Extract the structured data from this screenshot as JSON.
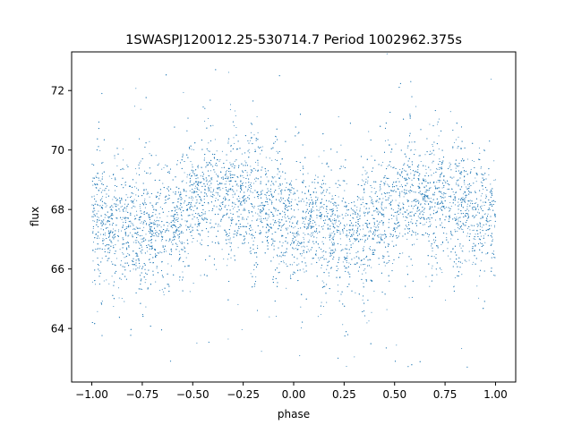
{
  "chart_data": {
    "type": "scatter",
    "title": "1SWASPJ120012.25-530714.7 Period 1002962.375s",
    "xlabel": "phase",
    "ylabel": "flux",
    "xlim": [
      -1.1,
      1.1
    ],
    "ylim": [
      62.2,
      73.3
    ],
    "xticks": [
      -1.0,
      -0.75,
      -0.5,
      -0.25,
      0.0,
      0.25,
      0.5,
      0.75,
      1.0
    ],
    "xtick_labels": [
      "−1.00",
      "−0.75",
      "−0.50",
      "−0.25",
      "0.00",
      "0.25",
      "0.50",
      "0.75",
      "1.00"
    ],
    "yticks": [
      64,
      66,
      68,
      70,
      72
    ],
    "ytick_labels": [
      "64",
      "66",
      "68",
      "70",
      "72"
    ],
    "grid": false,
    "marker_color": "#1f77b4",
    "series": [
      {
        "name": "",
        "approx_point_count": 14000,
        "x_range": [
          -1.0,
          1.0
        ],
        "mean_profile": {
          "x": [
            -1.0,
            -0.9,
            -0.8,
            -0.7,
            -0.6,
            -0.5,
            -0.4,
            -0.3,
            -0.2,
            -0.1,
            0.0,
            0.1,
            0.2,
            0.3,
            0.4,
            0.5,
            0.6,
            0.7,
            0.8,
            0.9,
            1.0
          ],
          "y": [
            67.6,
            67.4,
            67.3,
            67.2,
            67.5,
            68.1,
            68.4,
            68.3,
            68.1,
            67.9,
            67.6,
            67.4,
            67.3,
            67.2,
            67.5,
            68.1,
            68.4,
            68.3,
            68.1,
            67.9,
            67.6
          ]
        },
        "typical_spread": [
          65.5,
          70.0
        ],
        "outlier_range": [
          62.6,
          72.8
        ],
        "sample_points": [
          {
            "x": -0.95,
            "y": 71.9
          },
          {
            "x": -0.61,
            "y": 62.9
          },
          {
            "x": -0.44,
            "y": 71.4
          },
          {
            "x": -0.07,
            "y": 72.5
          },
          {
            "x": 0.22,
            "y": 63.0
          },
          {
            "x": 0.58,
            "y": 72.3
          },
          {
            "x": 0.86,
            "y": 62.7
          },
          {
            "x": 0.97,
            "y": 70.3
          }
        ]
      }
    ]
  }
}
